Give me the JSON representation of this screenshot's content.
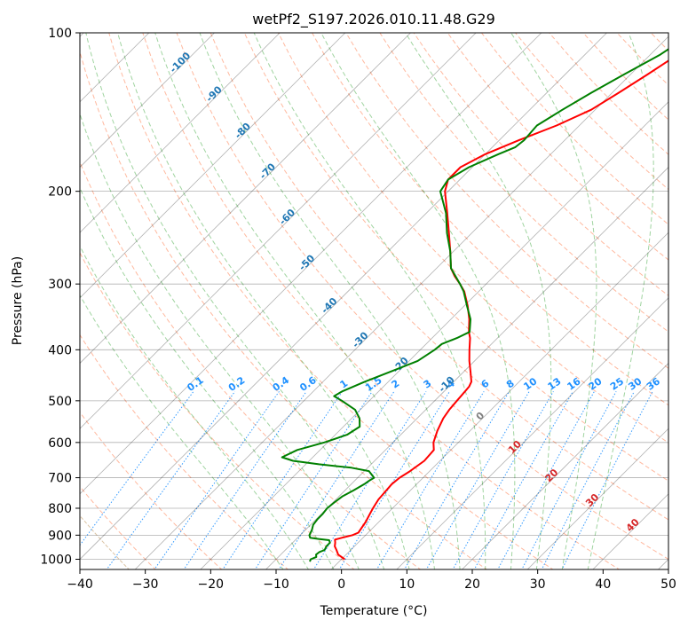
{
  "chart_data": {
    "type": "line",
    "diagram": "skew-T log-P",
    "title": "wetPf2_S197.2026.010.11.48.G29",
    "xlabel": "Temperature (°C)",
    "ylabel": "Pressure (hPa)",
    "xlim": [
      -40,
      50
    ],
    "ylim": [
      1050,
      100
    ],
    "y_scale": "log",
    "x_ticks": [
      "−40",
      "−30",
      "−20",
      "−10",
      "0",
      "10",
      "20",
      "30",
      "40",
      "50"
    ],
    "y_ticks": [
      {
        "p": 100,
        "label": "100"
      },
      {
        "p": 200,
        "label": "200"
      },
      {
        "p": 300,
        "label": "300"
      },
      {
        "p": 400,
        "label": "400"
      },
      {
        "p": 500,
        "label": "500"
      },
      {
        "p": 600,
        "label": "600"
      },
      {
        "p": 700,
        "label": "700"
      },
      {
        "p": 800,
        "label": "800"
      },
      {
        "p": 900,
        "label": "900"
      },
      {
        "p": 1000,
        "label": "1000"
      }
    ],
    "grid": true,
    "series": [
      {
        "color": "#ff0000",
        "values": [
          [
            1000,
            0.5
          ],
          [
            980,
            -1.2
          ],
          [
            960,
            -2.2
          ],
          [
            945,
            -3.0
          ],
          [
            930,
            -3.5
          ],
          [
            918,
            -4.0
          ],
          [
            910,
            -3.2
          ],
          [
            900,
            -2.0
          ],
          [
            890,
            -1.5
          ],
          [
            850,
            -2.0
          ],
          [
            820,
            -2.6
          ],
          [
            800,
            -3.0
          ],
          [
            770,
            -3.5
          ],
          [
            720,
            -3.8
          ],
          [
            700,
            -3.6
          ],
          [
            680,
            -3.0
          ],
          [
            650,
            -2.4
          ],
          [
            620,
            -2.6
          ],
          [
            600,
            -3.8
          ],
          [
            570,
            -5.0
          ],
          [
            540,
            -6.0
          ],
          [
            520,
            -6.4
          ],
          [
            500,
            -6.6
          ],
          [
            480,
            -6.8
          ],
          [
            470,
            -6.9
          ],
          [
            460,
            -7.3
          ],
          [
            440,
            -9.0
          ],
          [
            420,
            -10.8
          ],
          [
            400,
            -12.5
          ],
          [
            380,
            -14.2
          ],
          [
            370,
            -15.3
          ],
          [
            350,
            -17.2
          ],
          [
            330,
            -19.5
          ],
          [
            310,
            -22.2
          ],
          [
            300,
            -24.0
          ],
          [
            290,
            -26.0
          ],
          [
            280,
            -27.8
          ],
          [
            260,
            -30.5
          ],
          [
            240,
            -33.5
          ],
          [
            220,
            -36.8
          ],
          [
            200,
            -40.5
          ],
          [
            190,
            -41.8
          ],
          [
            180,
            -41.8
          ],
          [
            170,
            -40.0
          ],
          [
            160,
            -37.0
          ],
          [
            150,
            -33.5
          ],
          [
            140,
            -30.6
          ],
          [
            130,
            -29.0
          ],
          [
            120,
            -27.4
          ],
          [
            110,
            -25.8
          ],
          [
            100,
            -24.5
          ]
        ]
      },
      {
        "color": "#008000",
        "values": [
          [
            1010,
            -4.5
          ],
          [
            1000,
            -4.7
          ],
          [
            990,
            -4.2
          ],
          [
            980,
            -4.6
          ],
          [
            970,
            -4.5
          ],
          [
            960,
            -4.0
          ],
          [
            945,
            -4.3
          ],
          [
            930,
            -4.3
          ],
          [
            920,
            -4.8
          ],
          [
            915,
            -6.6
          ],
          [
            910,
            -8.1
          ],
          [
            900,
            -8.6
          ],
          [
            880,
            -9.0
          ],
          [
            860,
            -9.6
          ],
          [
            840,
            -9.8
          ],
          [
            820,
            -9.8
          ],
          [
            800,
            -10.0
          ],
          [
            780,
            -9.8
          ],
          [
            760,
            -9.5
          ],
          [
            740,
            -8.7
          ],
          [
            720,
            -8.0
          ],
          [
            710,
            -7.8
          ],
          [
            700,
            -7.5
          ],
          [
            680,
            -9.3
          ],
          [
            670,
            -12.5
          ],
          [
            660,
            -18.0
          ],
          [
            650,
            -22.5
          ],
          [
            640,
            -24.7
          ],
          [
            620,
            -23.5
          ],
          [
            600,
            -20.5
          ],
          [
            580,
            -18.2
          ],
          [
            560,
            -17.5
          ],
          [
            540,
            -18.8
          ],
          [
            520,
            -20.8
          ],
          [
            500,
            -24.2
          ],
          [
            490,
            -26.1
          ],
          [
            480,
            -25.6
          ],
          [
            460,
            -23.6
          ],
          [
            440,
            -21.2
          ],
          [
            420,
            -18.7
          ],
          [
            400,
            -17.8
          ],
          [
            390,
            -17.6
          ],
          [
            380,
            -16.2
          ],
          [
            370,
            -15.2
          ],
          [
            350,
            -17.0
          ],
          [
            330,
            -19.6
          ],
          [
            310,
            -22.3
          ],
          [
            300,
            -24.0
          ],
          [
            280,
            -27.8
          ],
          [
            260,
            -30.5
          ],
          [
            240,
            -33.8
          ],
          [
            220,
            -37.0
          ],
          [
            200,
            -41.2
          ],
          [
            190,
            -41.8
          ],
          [
            180,
            -40.5
          ],
          [
            170,
            -38.0
          ],
          [
            165,
            -36.5
          ],
          [
            160,
            -36.2
          ],
          [
            150,
            -36.5
          ],
          [
            140,
            -35.0
          ],
          [
            130,
            -33.2
          ],
          [
            120,
            -31.0
          ],
          [
            110,
            -28.5
          ],
          [
            100,
            -26.8
          ]
        ]
      }
    ],
    "background_lines": {
      "dry_adiabats_color": "#ff7f50",
      "moist_adiabats_color": "#2ca02c",
      "mixing_ratio_color": "#1e90ff",
      "isotherm_color": "#808080",
      "hodograph_arc_color": "#d2b48c"
    },
    "mixing_ratio_labels": [
      "0.1",
      "0.2",
      "0.4",
      "0.6",
      "1",
      "1.5",
      "2",
      "3",
      "4",
      "6",
      "8",
      "10",
      "13",
      "16",
      "20",
      "25",
      "30",
      "36"
    ],
    "isotherm_labels_blue": [
      "-100",
      "-90",
      "-80",
      "-70",
      "-60",
      "-50",
      "-40",
      "-30",
      "-20",
      "-10"
    ],
    "isotherm_labels_red": [
      "10",
      "20",
      "30",
      "40"
    ],
    "isotherm_label_zero": "0",
    "colors": {
      "blue_label": "#1f77b4",
      "mix_label": "#1e90ff",
      "red_label": "#d62728",
      "zero_label": "#808080"
    }
  }
}
